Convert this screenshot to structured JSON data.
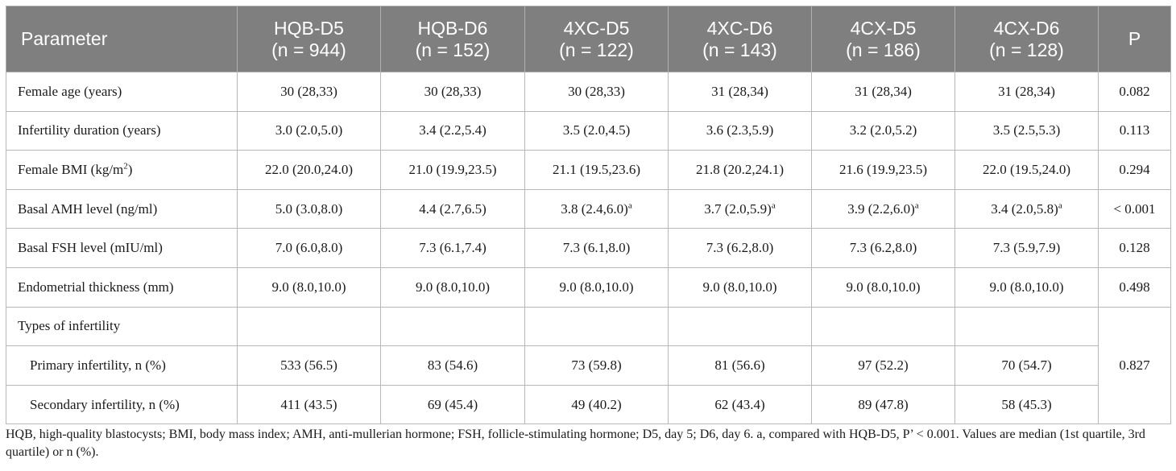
{
  "table": {
    "headers": [
      {
        "line1": "Parameter",
        "line2": ""
      },
      {
        "line1": "HQB-D5",
        "line2": "(n = 944)"
      },
      {
        "line1": "HQB-D6",
        "line2": "(n = 152)"
      },
      {
        "line1": "4XC-D5",
        "line2": "(n = 122)"
      },
      {
        "line1": "4XC-D6",
        "line2": "(n = 143)"
      },
      {
        "line1": "4CX-D5",
        "line2": "(n = 186)"
      },
      {
        "line1": "4CX-D6",
        "line2": "(n = 128)"
      },
      {
        "line1": "P",
        "line2": ""
      }
    ],
    "rows": {
      "female_age": {
        "label": "Female age (years)",
        "cells": [
          "30 (28,33)",
          "30 (28,33)",
          "30 (28,33)",
          "31 (28,34)",
          "31 (28,34)",
          "31 (28,34)"
        ],
        "p": "0.082"
      },
      "infertility_duration": {
        "label": "Infertility duration (years)",
        "cells": [
          "3.0 (2.0,5.0)",
          "3.4 (2.2,5.4)",
          "3.5 (2.0,4.5)",
          "3.6 (2.3,5.9)",
          "3.2 (2.0,5.2)",
          "3.5 (2.5,5.3)"
        ],
        "p": "0.113"
      },
      "female_bmi": {
        "label_main": "Female BMI (kg/m",
        "label_sup": "2",
        "label_end": ")",
        "cells": [
          "22.0 (20.0,24.0)",
          "21.0 (19.9,23.5)",
          "21.1 (19.5,23.6)",
          "21.8 (20.2,24.1)",
          "21.6 (19.9,23.5)",
          "22.0 (19.5,24.0)"
        ],
        "p": "0.294"
      },
      "basal_amh": {
        "label": "Basal AMH level (ng/ml)",
        "cells": [
          "5.0 (3.0,8.0)",
          "4.4 (2.7,6.5)",
          "3.8 (2.4,6.0)",
          "3.7 (2.0,5.9)",
          "3.9 (2.2,6.0)",
          "3.4 (2.0,5.8)"
        ],
        "sup_mark": "a",
        "p": "< 0.001"
      },
      "basal_fsh": {
        "label": "Basal FSH level (mIU/ml)",
        "cells": [
          "7.0 (6.0,8.0)",
          "7.3 (6.1,7.4)",
          "7.3 (6.1,8.0)",
          "7.3 (6.2,8.0)",
          "7.3 (6.2,8.0)",
          "7.3 (5.9,7.9)"
        ],
        "p": "0.128"
      },
      "endometrial_thickness": {
        "label": "Endometrial thickness (mm)",
        "cells": [
          "9.0 (8.0,10.0)",
          "9.0 (8.0,10.0)",
          "9.0 (8.0,10.0)",
          "9.0 (8.0,10.0)",
          "9.0 (8.0,10.0)",
          "9.0 (8.0,10.0)"
        ],
        "p": "0.498"
      },
      "types_of_infertility": {
        "label": "Types of infertility"
      },
      "primary_infertility": {
        "label": "Primary infertility, n (%)",
        "cells": [
          "533 (56.5)",
          "83 (54.6)",
          "73 (59.8)",
          "81 (56.6)",
          "97 (52.2)",
          "70 (54.7)"
        ]
      },
      "secondary_infertility": {
        "label": "Secondary infertility, n (%)",
        "cells": [
          "411 (43.5)",
          "69 (45.4)",
          "49 (40.2)",
          "62 (43.4)",
          "89 (47.8)",
          "58 (45.3)"
        ]
      },
      "infertility_type_p": "0.827"
    }
  },
  "footnote": "HQB, high-quality blastocysts; BMI, body mass index; AMH, anti-mullerian hormone; FSH, follicle-stimulating hormone; D5, day 5; D6, day 6. a, compared with HQB-D5, P’ < 0.001. Values are median (1st quartile, 3rd quartile) or n (%)."
}
